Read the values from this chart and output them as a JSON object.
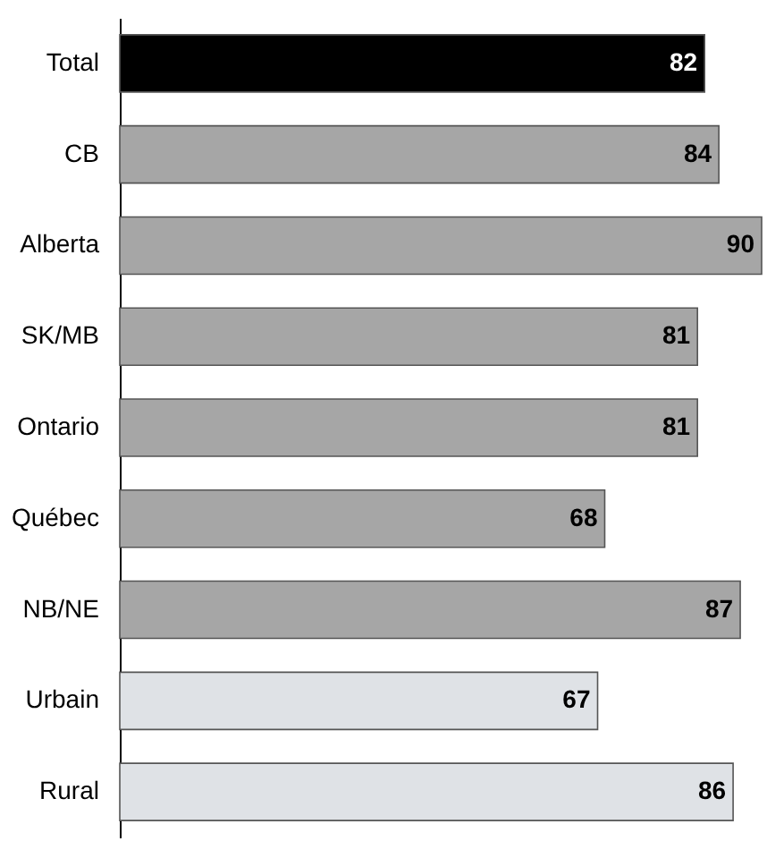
{
  "chart_data": {
    "type": "bar",
    "orientation": "horizontal",
    "categories": [
      "Total",
      "CB",
      "Alberta",
      "SK/MB",
      "Ontario",
      "Québec",
      "NB/NE",
      "Urbain",
      "Rural"
    ],
    "values": [
      82,
      84,
      90,
      81,
      81,
      68,
      87,
      67,
      86
    ],
    "colors": [
      "#000000",
      "#a6a6a6",
      "#a6a6a6",
      "#a6a6a6",
      "#a6a6a6",
      "#a6a6a6",
      "#a6a6a6",
      "#dfe2e6",
      "#dfe2e6"
    ],
    "data_labels": true,
    "grid": false
  }
}
